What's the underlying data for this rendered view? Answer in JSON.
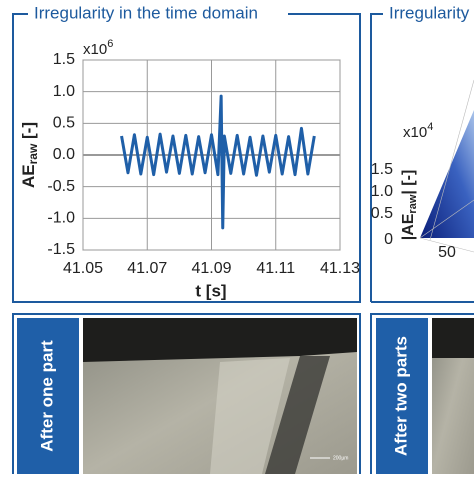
{
  "chart_data": {
    "type": "line",
    "title": "Irregularity in the time domain",
    "ylabel": "AE",
    "ylabel_sub": "raw",
    "ylabel_unit": " [-]",
    "xlabel": "t [s]",
    "y_multiplier": "x10",
    "y_multiplier_exp": "6",
    "x": [
      41.062,
      41.064,
      41.066,
      41.068,
      41.07,
      41.072,
      41.074,
      41.076,
      41.078,
      41.08,
      41.082,
      41.084,
      41.086,
      41.088,
      41.09,
      41.092,
      41.093,
      41.0935,
      41.094,
      41.096,
      41.098,
      41.1,
      41.102,
      41.104,
      41.106,
      41.108,
      41.11,
      41.112,
      41.114,
      41.116,
      41.118,
      41.12,
      41.122
    ],
    "series": [
      {
        "color": "#1f5fa8",
        "values": [
          0.3,
          -0.28,
          0.32,
          -0.3,
          0.28,
          -0.31,
          0.33,
          -0.27,
          0.3,
          -0.29,
          0.31,
          -0.3,
          0.29,
          -0.28,
          0.32,
          -0.31,
          0.93,
          -1.15,
          0.3,
          -0.29,
          0.31,
          -0.3,
          0.28,
          -0.32,
          0.3,
          -0.27,
          0.31,
          -0.3,
          0.29,
          -0.31,
          0.42,
          -0.3,
          0.3
        ]
      }
    ],
    "xlim": [
      41.05,
      41.13
    ],
    "xticks": [
      41.05,
      41.07,
      41.09,
      41.11,
      41.13
    ],
    "ylim": [
      -1.5,
      1.5
    ],
    "yticks": [
      -1.5,
      {
        "value": -1,
        "label": "-1.0"
      },
      -0.5,
      {
        "value": 0,
        "label": "0.0"
      },
      0.5,
      {
        "value": 1,
        "label": "1.0"
      },
      1.5
    ],
    "grid": true
  },
  "right_panel": {
    "title": "Irregularity",
    "multiplier": "x10",
    "multiplier_exp": "4",
    "ylabel_pre": "|AE",
    "ylabel_sub": "raw",
    "ylabel_post": "| [-]",
    "yticks": [
      "1.5",
      "1.0",
      "0.5",
      "0"
    ],
    "xtick": "50"
  },
  "bottom_panels": [
    {
      "label": "After one part",
      "scale_bar": "200µm"
    },
    {
      "label": "After two parts"
    }
  ]
}
